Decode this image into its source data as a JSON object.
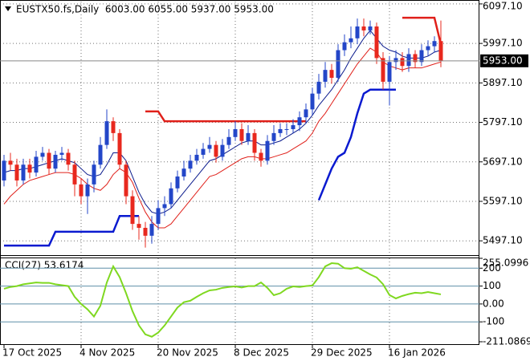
{
  "chart_data": [
    {
      "type": "candlestick",
      "title": "EUSTX50.fs,Daily  6003.00 6055.00 5937.00 5953.00",
      "categories": [
        "17 Oct 2025",
        null,
        null,
        null,
        null,
        null,
        null,
        null,
        null,
        null,
        null,
        null,
        "4 Nov 2025",
        null,
        null,
        null,
        null,
        null,
        null,
        null,
        null,
        null,
        null,
        null,
        "20 Nov 2025",
        null,
        null,
        null,
        null,
        null,
        null,
        null,
        null,
        null,
        null,
        null,
        "8 Dec 2025",
        null,
        null,
        null,
        null,
        null,
        null,
        null,
        null,
        null,
        null,
        null,
        "29 Dec 2025",
        null,
        null,
        null,
        null,
        null,
        null,
        null,
        null,
        null,
        null,
        null,
        "16 Jan 2026",
        null,
        null,
        null,
        null,
        null,
        null,
        null,
        null
      ],
      "open": [
        5650,
        5700,
        5690,
        5650,
        5690,
        5670,
        5710,
        5720,
        5680,
        5715,
        5720,
        5690,
        5640,
        5610,
        5640,
        5690,
        5740,
        5800,
        5770,
        5690,
        5610,
        5540,
        5530,
        5510,
        5540,
        5580,
        5590,
        5630,
        5660,
        5680,
        5700,
        5715,
        5730,
        5740,
        5710,
        5740,
        5760,
        5780,
        5750,
        5770,
        5720,
        5700,
        5750,
        5770,
        5780,
        5780,
        5790,
        5810,
        5830,
        5870,
        5900,
        5930,
        5910,
        5980,
        6000,
        6010,
        6040,
        6030,
        6040,
        5960,
        5900,
        5950,
        5960,
        5940,
        5970,
        5950,
        5980,
        5990,
        6003
      ],
      "high": [
        5715,
        5720,
        5705,
        5705,
        5705,
        5725,
        5735,
        5730,
        5725,
        5735,
        5730,
        5700,
        5655,
        5655,
        5700,
        5760,
        5830,
        5810,
        5780,
        5700,
        5625,
        5560,
        5545,
        5560,
        5600,
        5610,
        5645,
        5675,
        5700,
        5715,
        5730,
        5745,
        5760,
        5750,
        5755,
        5780,
        5800,
        5795,
        5790,
        5780,
        5730,
        5765,
        5790,
        5795,
        5795,
        5805,
        5825,
        5845,
        5885,
        5920,
        5950,
        5945,
        5995,
        6020,
        6040,
        6060,
        6060,
        6055,
        6050,
        5975,
        5965,
        5980,
        5975,
        5985,
        5980,
        5995,
        6005,
        6015,
        6055
      ],
      "low": [
        5635,
        5675,
        5635,
        5640,
        5655,
        5660,
        5700,
        5665,
        5670,
        5700,
        5675,
        5610,
        5590,
        5565,
        5620,
        5680,
        5730,
        5750,
        5680,
        5590,
        5525,
        5500,
        5480,
        5490,
        5525,
        5560,
        5580,
        5620,
        5650,
        5670,
        5690,
        5705,
        5720,
        5695,
        5700,
        5730,
        5750,
        5740,
        5740,
        5700,
        5685,
        5690,
        5740,
        5760,
        5765,
        5770,
        5775,
        5795,
        5815,
        5855,
        5885,
        5895,
        5900,
        5965,
        5985,
        5995,
        6015,
        6020,
        5945,
        5880,
        5840,
        5930,
        5925,
        5925,
        5935,
        5940,
        5965,
        5975,
        5937
      ],
      "close": [
        5700,
        5690,
        5650,
        5690,
        5670,
        5710,
        5720,
        5680,
        5715,
        5720,
        5690,
        5640,
        5610,
        5640,
        5690,
        5740,
        5800,
        5770,
        5690,
        5610,
        5540,
        5530,
        5510,
        5540,
        5580,
        5590,
        5630,
        5660,
        5680,
        5700,
        5715,
        5730,
        5740,
        5710,
        5740,
        5760,
        5780,
        5750,
        5770,
        5720,
        5700,
        5750,
        5770,
        5780,
        5780,
        5790,
        5810,
        5830,
        5870,
        5900,
        5930,
        5910,
        5980,
        6000,
        6010,
        6040,
        6030,
        6040,
        5960,
        5900,
        5950,
        5960,
        5940,
        5970,
        5950,
        5980,
        5990,
        6003,
        5953
      ],
      "up_color": "#2346c8",
      "down_color": "#e8281e",
      "ylim": [
        5465,
        6103
      ],
      "yticks": [
        {
          "value": 6097.1,
          "label": "6097.10"
        },
        {
          "value": 5997.1,
          "label": "5997.10"
        },
        {
          "value": 5897.1,
          "label": "5897.10"
        },
        {
          "value": 5797.1,
          "label": "5797.10"
        },
        {
          "value": 5697.1,
          "label": "5697.10"
        },
        {
          "value": 5597.1,
          "label": "5597.10"
        },
        {
          "value": 5497.1,
          "label": "5497.10"
        }
      ],
      "grid": true,
      "last_price": {
        "value": 5953,
        "label": "5953.00"
      },
      "overlays": [
        {
          "color": "#0a1a8c",
          "width": 1,
          "values": [
            5670,
            5675,
            5675,
            5680,
            5680,
            5685,
            5690,
            5695,
            5700,
            5705,
            5700,
            5695,
            5680,
            5665,
            5660,
            5665,
            5690,
            5720,
            5720,
            5700,
            5660,
            5620,
            5590,
            5570,
            5565,
            5570,
            5580,
            5600,
            5620,
            5640,
            5660,
            5680,
            5700,
            5705,
            5715,
            5725,
            5735,
            5745,
            5750,
            5750,
            5740,
            5740,
            5745,
            5750,
            5760,
            5770,
            5780,
            5795,
            5815,
            5840,
            5860,
            5880,
            5905,
            5930,
            5960,
            5985,
            6010,
            6030,
            6010,
            5990,
            5980,
            5975,
            5965,
            5960,
            5960,
            5960,
            5965,
            5975,
            5980
          ]
        },
        {
          "color": "#e0201a",
          "width": 1,
          "values": [
            5590,
            5610,
            5625,
            5640,
            5650,
            5655,
            5660,
            5665,
            5670,
            5670,
            5670,
            5665,
            5655,
            5640,
            5630,
            5625,
            5640,
            5665,
            5680,
            5670,
            5645,
            5605,
            5570,
            5545,
            5530,
            5530,
            5540,
            5560,
            5580,
            5600,
            5620,
            5640,
            5660,
            5665,
            5675,
            5685,
            5695,
            5705,
            5710,
            5710,
            5705,
            5705,
            5710,
            5715,
            5720,
            5730,
            5740,
            5750,
            5770,
            5800,
            5820,
            5845,
            5870,
            5895,
            5920,
            5945,
            5965,
            5985,
            5975,
            5950,
            5940,
            5935,
            5930,
            5935,
            5935,
            5935,
            5940,
            5945,
            5950
          ]
        },
        {
          "color": "#0a1ad0",
          "width": 2.5,
          "values": [
            5485,
            5485,
            5485,
            5485,
            5485,
            5485,
            5485,
            5485,
            5520,
            5520,
            5520,
            5520,
            5520,
            5520,
            5520,
            5520,
            5520,
            5520,
            5560,
            5560,
            5560,
            5560,
            null,
            null,
            null,
            null,
            null,
            null,
            null,
            null,
            null,
            null,
            null,
            null,
            null,
            null,
            null,
            null,
            null,
            null,
            null,
            null,
            null,
            null,
            null,
            null,
            null,
            null,
            null,
            5600,
            5640,
            5680,
            5710,
            5720,
            5760,
            5820,
            5870,
            5880,
            5880,
            5880,
            5880,
            5880,
            null,
            null,
            null,
            null,
            null,
            null,
            null
          ]
        },
        {
          "color": "#e0201a",
          "width": 2.5,
          "values": [
            null,
            null,
            null,
            null,
            null,
            null,
            null,
            null,
            null,
            null,
            null,
            null,
            null,
            null,
            null,
            null,
            null,
            null,
            null,
            null,
            null,
            null,
            5825,
            5825,
            5825,
            5800,
            5800,
            5800,
            5800,
            5800,
            5800,
            5800,
            5800,
            5800,
            5800,
            5800,
            5800,
            5800,
            5800,
            5800,
            5800,
            5800,
            5800,
            5800,
            5800,
            5800,
            5800,
            5800,
            null,
            null,
            null,
            null,
            null,
            null,
            null,
            null,
            null,
            null,
            null,
            null,
            null,
            null,
            6062,
            6062,
            6062,
            6062,
            6062,
            6062,
            5995
          ]
        }
      ]
    },
    {
      "type": "line",
      "title": "CCI(27) 53.6174",
      "color": "#7fd820",
      "values": [
        85,
        95,
        100,
        110,
        115,
        120,
        118,
        118,
        110,
        105,
        100,
        40,
        0,
        -30,
        -70,
        -10,
        120,
        210,
        150,
        60,
        -40,
        -120,
        -170,
        -183,
        -160,
        -120,
        -70,
        -20,
        10,
        18,
        40,
        60,
        76,
        80,
        90,
        95,
        98,
        92,
        100,
        100,
        120,
        90,
        49,
        60,
        85,
        98,
        95,
        100,
        103,
        150,
        210,
        228,
        225,
        200,
        197,
        205,
        185,
        165,
        148,
        110,
        50,
        31,
        45,
        55,
        63,
        60,
        67,
        60,
        53.6174
      ],
      "ylim": [
        -211.0869,
        255.0996
      ],
      "yticks": [
        255.0996,
        200,
        100,
        {
          "value": 0,
          "label": "0.00"
        },
        -100,
        -211.0869
      ]
    }
  ]
}
